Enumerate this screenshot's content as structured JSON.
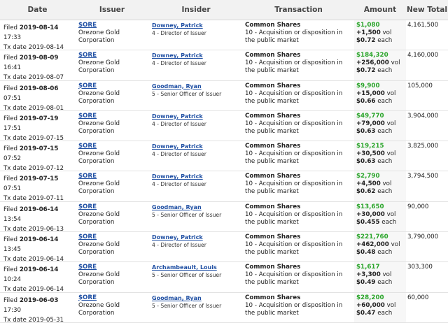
{
  "headers": {
    "date": "Date",
    "issuer": "Issuer",
    "insider": "Insider",
    "transaction": "Transaction",
    "amount": "Amount",
    "new_total": "New Total"
  },
  "rows": [
    {
      "filed_label": "Filed",
      "filed_date": "2019-08-14",
      "filed_time": "17:33",
      "tx_label": "Tx date",
      "tx_date": "2019-08-14",
      "ticker": "$ORE",
      "issuer": "Orezone Gold Corporation",
      "insider": "Downey, Patrick",
      "role": "4 - Director of Issuer",
      "tx_title": "Common Shares",
      "tx_desc": "10 - Acquisition or disposition in the public market",
      "amount": "$1,080",
      "volume": "+1,500",
      "vol_suffix": "vol",
      "price": "$0.72",
      "price_suffix": "each",
      "new_total": "4,161,500"
    },
    {
      "filed_label": "Filed",
      "filed_date": "2019-08-09",
      "filed_time": "16:41",
      "tx_label": "Tx date",
      "tx_date": "2019-08-07",
      "ticker": "$ORE",
      "issuer": "Orezone Gold Corporation",
      "insider": "Downey, Patrick",
      "role": "4 - Director of Issuer",
      "tx_title": "Common Shares",
      "tx_desc": "10 - Acquisition or disposition in the public market",
      "amount": "$184,320",
      "volume": "+256,000",
      "vol_suffix": "vol",
      "price": "$0.72",
      "price_suffix": "each",
      "new_total": "4,160,000"
    },
    {
      "filed_label": "Filed",
      "filed_date": "2019-08-06",
      "filed_time": "07:51",
      "tx_label": "Tx date",
      "tx_date": "2019-08-01",
      "ticker": "$ORE",
      "issuer": "Orezone Gold Corporation",
      "insider": "Goodman, Ryan",
      "role": "5 - Senior Officer of Issuer",
      "tx_title": "Common Shares",
      "tx_desc": "10 - Acquisition or disposition in the public market",
      "amount": "$9,900",
      "volume": "+15,000",
      "vol_suffix": "vol",
      "price": "$0.66",
      "price_suffix": "each",
      "new_total": "105,000"
    },
    {
      "filed_label": "Filed",
      "filed_date": "2019-07-19",
      "filed_time": "17:51",
      "tx_label": "Tx date",
      "tx_date": "2019-07-15",
      "ticker": "$ORE",
      "issuer": "Orezone Gold Corporation",
      "insider": "Downey, Patrick",
      "role": "4 - Director of Issuer",
      "tx_title": "Common Shares",
      "tx_desc": "10 - Acquisition or disposition in the public market",
      "amount": "$49,770",
      "volume": "+79,000",
      "vol_suffix": "vol",
      "price": "$0.63",
      "price_suffix": "each",
      "new_total": "3,904,000"
    },
    {
      "filed_label": "Filed",
      "filed_date": "2019-07-15",
      "filed_time": "07:52",
      "tx_label": "Tx date",
      "tx_date": "2019-07-12",
      "ticker": "$ORE",
      "issuer": "Orezone Gold Corporation",
      "insider": "Downey, Patrick",
      "role": "4 - Director of Issuer",
      "tx_title": "Common Shares",
      "tx_desc": "10 - Acquisition or disposition in the public market",
      "amount": "$19,215",
      "volume": "+30,500",
      "vol_suffix": "vol",
      "price": "$0.63",
      "price_suffix": "each",
      "new_total": "3,825,000"
    },
    {
      "filed_label": "Filed",
      "filed_date": "2019-07-15",
      "filed_time": "07:51",
      "tx_label": "Tx date",
      "tx_date": "2019-07-11",
      "ticker": "$ORE",
      "issuer": "Orezone Gold Corporation",
      "insider": "Downey, Patrick",
      "role": "4 - Director of Issuer",
      "tx_title": "Common Shares",
      "tx_desc": "10 - Acquisition or disposition in the public market",
      "amount": "$2,790",
      "volume": "+4,500",
      "vol_suffix": "vol",
      "price": "$0.62",
      "price_suffix": "each",
      "new_total": "3,794,500"
    },
    {
      "filed_label": "Filed",
      "filed_date": "2019-06-14",
      "filed_time": "13:54",
      "tx_label": "Tx date",
      "tx_date": "2019-06-13",
      "ticker": "$ORE",
      "issuer": "Orezone Gold Corporation",
      "insider": "Goodman, Ryan",
      "role": "5 - Senior Officer of Issuer",
      "tx_title": "Common Shares",
      "tx_desc": "10 - Acquisition or disposition in the public market",
      "amount": "$13,650",
      "volume": "+30,000",
      "vol_suffix": "vol",
      "price": "$0.455",
      "price_suffix": "each",
      "new_total": "90,000"
    },
    {
      "filed_label": "Filed",
      "filed_date": "2019-06-14",
      "filed_time": "13:45",
      "tx_label": "Tx date",
      "tx_date": "2019-06-14",
      "ticker": "$ORE",
      "issuer": "Orezone Gold Corporation",
      "insider": "Downey, Patrick",
      "role": "4 - Director of Issuer",
      "tx_title": "Common Shares",
      "tx_desc": "10 - Acquisition or disposition in the public market",
      "amount": "$221,760",
      "volume": "+462,000",
      "vol_suffix": "vol",
      "price": "$0.48",
      "price_suffix": "each",
      "new_total": "3,790,000"
    },
    {
      "filed_label": "Filed",
      "filed_date": "2019-06-14",
      "filed_time": "10:24",
      "tx_label": "Tx date",
      "tx_date": "2019-06-14",
      "ticker": "$ORE",
      "issuer": "Orezone Gold Corporation",
      "insider": "Archambeault, Louis",
      "role": "5 - Senior Officer of Issuer",
      "tx_title": "Common Shares",
      "tx_desc": "10 - Acquisition or disposition in the public market",
      "amount": "$1,617",
      "volume": "+3,300",
      "vol_suffix": "vol",
      "price": "$0.49",
      "price_suffix": "each",
      "new_total": "303,300"
    },
    {
      "filed_label": "Filed",
      "filed_date": "2019-06-03",
      "filed_time": "17:30",
      "tx_label": "Tx date",
      "tx_date": "2019-05-31",
      "ticker": "$ORE",
      "issuer": "Orezone Gold Corporation",
      "insider": "Goodman, Ryan",
      "role": "5 - Senior Officer of Issuer",
      "tx_title": "Common Shares",
      "tx_desc": "10 - Acquisition or disposition in the public market",
      "amount": "$28,200",
      "volume": "+60,000",
      "vol_suffix": "vol",
      "price": "$0.47",
      "price_suffix": "each",
      "new_total": "60,000"
    }
  ]
}
